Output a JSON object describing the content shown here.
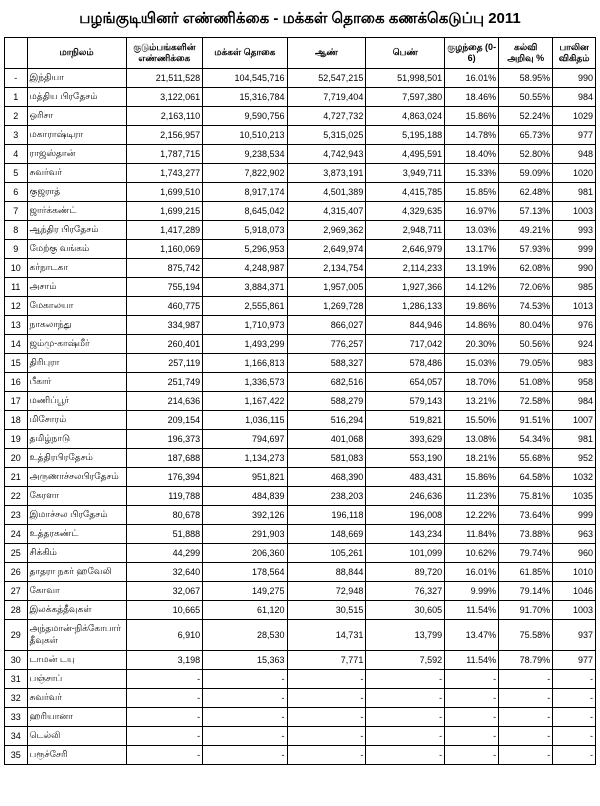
{
  "title": "பழங்குடியினர் எண்ணிக்கை - மக்கள் தொகை கணக்கெடுப்பு 2011",
  "headers": {
    "idx": "",
    "state": "மாநிலம்",
    "households": "குடும்பங்களின் எண்ணிக்கை",
    "population": "மக்கள் தொகை",
    "male": "ஆண்",
    "female": "பெண்",
    "child": "குழந்தை (0-6)",
    "literacy": "கல்வி அறிவு %",
    "sexratio": "பாலின விகிதம்"
  },
  "rows": [
    {
      "idx": "-",
      "state": "இந்தியா",
      "h": "21,511,528",
      "p": "104,545,716",
      "m": "52,547,215",
      "f": "51,998,501",
      "ch": "16.01%",
      "lit": "58.95%",
      "sex": "990"
    },
    {
      "idx": "1",
      "state": "மத்திய பிரதேசம்",
      "h": "3,122,061",
      "p": "15,316,784",
      "m": "7,719,404",
      "f": "7,597,380",
      "ch": "18.46%",
      "lit": "50.55%",
      "sex": "984"
    },
    {
      "idx": "2",
      "state": "ஒரிசா",
      "h": "2,163,110",
      "p": "9,590,756",
      "m": "4,727,732",
      "f": "4,863,024",
      "ch": "15.86%",
      "lit": "52.24%",
      "sex": "1029"
    },
    {
      "idx": "3",
      "state": "மகாராஷ்டிரா",
      "h": "2,156,957",
      "p": "10,510,213",
      "m": "5,315,025",
      "f": "5,195,188",
      "ch": "14.78%",
      "lit": "65.73%",
      "sex": "977"
    },
    {
      "idx": "4",
      "state": "ராஜஸ்தான்",
      "h": "1,787,715",
      "p": "9,238,534",
      "m": "4,742,943",
      "f": "4,495,591",
      "ch": "18.40%",
      "lit": "52.80%",
      "sex": "948"
    },
    {
      "idx": "5",
      "state": "சுவர்வர்",
      "h": "1,743,277",
      "p": "7,822,902",
      "m": "3,873,191",
      "f": "3,949,711",
      "ch": "15.33%",
      "lit": "59.09%",
      "sex": "1020"
    },
    {
      "idx": "6",
      "state": "குஜராத்",
      "h": "1,699,510",
      "p": "8,917,174",
      "m": "4,501,389",
      "f": "4,415,785",
      "ch": "15.85%",
      "lit": "62.48%",
      "sex": "981"
    },
    {
      "idx": "7",
      "state": "ஜார்க்கண்ட்",
      "h": "1,699,215",
      "p": "8,645,042",
      "m": "4,315,407",
      "f": "4,329,635",
      "ch": "16.97%",
      "lit": "57.13%",
      "sex": "1003"
    },
    {
      "idx": "8",
      "state": "ஆந்திர பிரதேசம்",
      "h": "1,417,289",
      "p": "5,918,073",
      "m": "2,969,362",
      "f": "2,948,711",
      "ch": "13.03%",
      "lit": "49.21%",
      "sex": "993"
    },
    {
      "idx": "9",
      "state": "மேற்கு வங்கம்",
      "h": "1,160,069",
      "p": "5,296,953",
      "m": "2,649,974",
      "f": "2,646,979",
      "ch": "13.17%",
      "lit": "57.93%",
      "sex": "999"
    },
    {
      "idx": "10",
      "state": "கர்நாடகா",
      "h": "875,742",
      "p": "4,248,987",
      "m": "2,134,754",
      "f": "2,114,233",
      "ch": "13.19%",
      "lit": "62.08%",
      "sex": "990"
    },
    {
      "idx": "11",
      "state": "அசாம்",
      "h": "755,194",
      "p": "3,884,371",
      "m": "1,957,005",
      "f": "1,927,366",
      "ch": "14.12%",
      "lit": "72.06%",
      "sex": "985"
    },
    {
      "idx": "12",
      "state": "மேகாலயா",
      "h": "460,775",
      "p": "2,555,861",
      "m": "1,269,728",
      "f": "1,286,133",
      "ch": "19.86%",
      "lit": "74.53%",
      "sex": "1013"
    },
    {
      "idx": "13",
      "state": "நாகலாந்து",
      "h": "334,987",
      "p": "1,710,973",
      "m": "866,027",
      "f": "844,946",
      "ch": "14.86%",
      "lit": "80.04%",
      "sex": "976"
    },
    {
      "idx": "14",
      "state": "ஜம்மு-காஷ்மீர்",
      "h": "260,401",
      "p": "1,493,299",
      "m": "776,257",
      "f": "717,042",
      "ch": "20.30%",
      "lit": "50.56%",
      "sex": "924"
    },
    {
      "idx": "15",
      "state": "திரிபுரா",
      "h": "257,119",
      "p": "1,166,813",
      "m": "588,327",
      "f": "578,486",
      "ch": "15.03%",
      "lit": "79.05%",
      "sex": "983"
    },
    {
      "idx": "16",
      "state": "பீகார்",
      "h": "251,749",
      "p": "1,336,573",
      "m": "682,516",
      "f": "654,057",
      "ch": "18.70%",
      "lit": "51.08%",
      "sex": "958"
    },
    {
      "idx": "17",
      "state": "மணிப்பூர்",
      "h": "214,636",
      "p": "1,167,422",
      "m": "588,279",
      "f": "579,143",
      "ch": "13.21%",
      "lit": "72.58%",
      "sex": "984"
    },
    {
      "idx": "18",
      "state": "மிசோரம்",
      "h": "209,154",
      "p": "1,036,115",
      "m": "516,294",
      "f": "519,821",
      "ch": "15.50%",
      "lit": "91.51%",
      "sex": "1007"
    },
    {
      "idx": "19",
      "state": "தமிழ்நாடு",
      "h": "196,373",
      "p": "794,697",
      "m": "401,068",
      "f": "393,629",
      "ch": "13.08%",
      "lit": "54.34%",
      "sex": "981"
    },
    {
      "idx": "20",
      "state": "உத்திரபிரதேசம்",
      "h": "187,688",
      "p": "1,134,273",
      "m": "581,083",
      "f": "553,190",
      "ch": "18.21%",
      "lit": "55.68%",
      "sex": "952"
    },
    {
      "idx": "21",
      "state": "அருணாச்சலபிரதேசம்",
      "h": "176,394",
      "p": "951,821",
      "m": "468,390",
      "f": "483,431",
      "ch": "15.86%",
      "lit": "64.58%",
      "sex": "1032"
    },
    {
      "idx": "22",
      "state": "கேரளா",
      "h": "119,788",
      "p": "484,839",
      "m": "238,203",
      "f": "246,636",
      "ch": "11.23%",
      "lit": "75.81%",
      "sex": "1035"
    },
    {
      "idx": "23",
      "state": "இமாச்சல பிரதேசம்",
      "h": "80,678",
      "p": "392,126",
      "m": "196,118",
      "f": "196,008",
      "ch": "12.22%",
      "lit": "73.64%",
      "sex": "999"
    },
    {
      "idx": "24",
      "state": "உத்தரகண்ட்",
      "h": "51,888",
      "p": "291,903",
      "m": "148,669",
      "f": "143,234",
      "ch": "11.84%",
      "lit": "73.88%",
      "sex": "963"
    },
    {
      "idx": "25",
      "state": "சிக்கிம்",
      "h": "44,299",
      "p": "206,360",
      "m": "105,261",
      "f": "101,099",
      "ch": "10.62%",
      "lit": "79.74%",
      "sex": "960"
    },
    {
      "idx": "26",
      "state": "தாதரா நகர் ஹவேலி",
      "h": "32,640",
      "p": "178,564",
      "m": "88,844",
      "f": "89,720",
      "ch": "16.01%",
      "lit": "61.85%",
      "sex": "1010"
    },
    {
      "idx": "27",
      "state": "கோவா",
      "h": "32,067",
      "p": "149,275",
      "m": "72,948",
      "f": "76,327",
      "ch": "9.99%",
      "lit": "79.14%",
      "sex": "1046"
    },
    {
      "idx": "28",
      "state": "இலக்கத்தீவுகள்",
      "h": "10,665",
      "p": "61,120",
      "m": "30,515",
      "f": "30,605",
      "ch": "11.54%",
      "lit": "91.70%",
      "sex": "1003"
    },
    {
      "idx": "29",
      "state": "அந்தமான்-நிக்கோபார் தீவுகள்",
      "h": "6,910",
      "p": "28,530",
      "m": "14,731",
      "f": "13,799",
      "ch": "13.47%",
      "lit": "75.58%",
      "sex": "937"
    },
    {
      "idx": "30",
      "state": "டாமன் டயு",
      "h": "3,198",
      "p": "15,363",
      "m": "7,771",
      "f": "7,592",
      "ch": "11.54%",
      "lit": "78.79%",
      "sex": "977"
    },
    {
      "idx": "31",
      "state": "பஞ்சாப்",
      "h": "-",
      "p": "-",
      "m": "-",
      "f": "-",
      "ch": "-",
      "lit": "-",
      "sex": "-"
    },
    {
      "idx": "32",
      "state": "சுவர்வர்",
      "h": "-",
      "p": "-",
      "m": "-",
      "f": "-",
      "ch": "-",
      "lit": "-",
      "sex": "-"
    },
    {
      "idx": "33",
      "state": "ஹரியானா",
      "h": "-",
      "p": "-",
      "m": "-",
      "f": "-",
      "ch": "-",
      "lit": "-",
      "sex": "-"
    },
    {
      "idx": "34",
      "state": "டெல்லி",
      "h": "-",
      "p": "-",
      "m": "-",
      "f": "-",
      "ch": "-",
      "lit": "-",
      "sex": "-"
    },
    {
      "idx": "35",
      "state": "பரூச்சேரி",
      "h": "-",
      "p": "-",
      "m": "-",
      "f": "-",
      "ch": "-",
      "lit": "-",
      "sex": "-"
    }
  ]
}
